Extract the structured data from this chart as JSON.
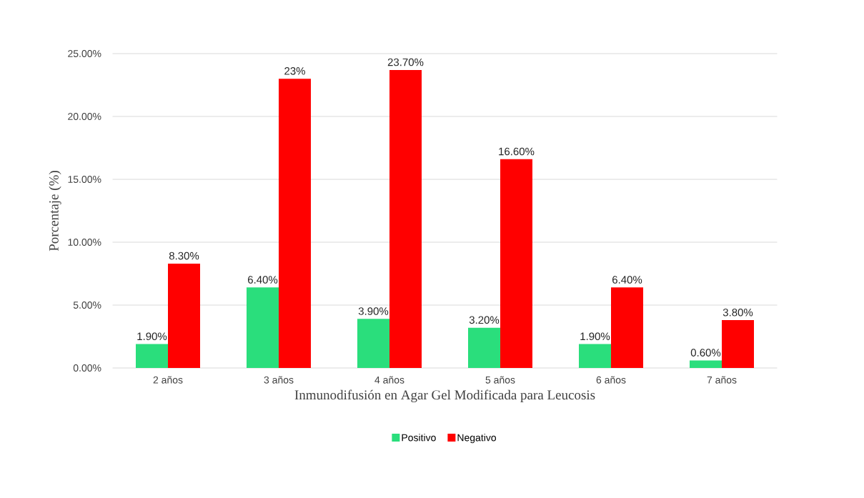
{
  "chart_data": {
    "type": "bar",
    "xlabel": "Inmunodifusión en Agar Gel Modificada para Leucosis",
    "ylabel": "Porcentaje (%)",
    "categories": [
      "2 años",
      "3 años",
      "4 años",
      "5 años",
      "6 años",
      "7 años"
    ],
    "series": [
      {
        "name": "Positivo",
        "color": "#2ade7c",
        "values": [
          1.9,
          6.4,
          3.9,
          3.2,
          1.9,
          0.6
        ],
        "value_labels": [
          "1.90%",
          "6.40%",
          "3.90%",
          "3.20%",
          "1.90%",
          "0.60%"
        ]
      },
      {
        "name": "Negativo",
        "color": "#ff0000",
        "values": [
          8.3,
          23,
          23.7,
          16.6,
          6.4,
          3.8
        ],
        "value_labels": [
          "8.30%",
          "23%",
          "23.70%",
          "16.60%",
          "6.40%",
          "3.80%"
        ]
      }
    ],
    "ylim": [
      0,
      25
    ],
    "yticks": [
      {
        "value": 0,
        "label": "0.00%"
      },
      {
        "value": 5,
        "label": "5.00%"
      },
      {
        "value": 10,
        "label": "10.00%"
      },
      {
        "value": 15,
        "label": "15.00%"
      },
      {
        "value": 20,
        "label": "20.00%"
      },
      {
        "value": 25,
        "label": "25.00%"
      }
    ],
    "grid": "y",
    "legend": "bottom"
  }
}
